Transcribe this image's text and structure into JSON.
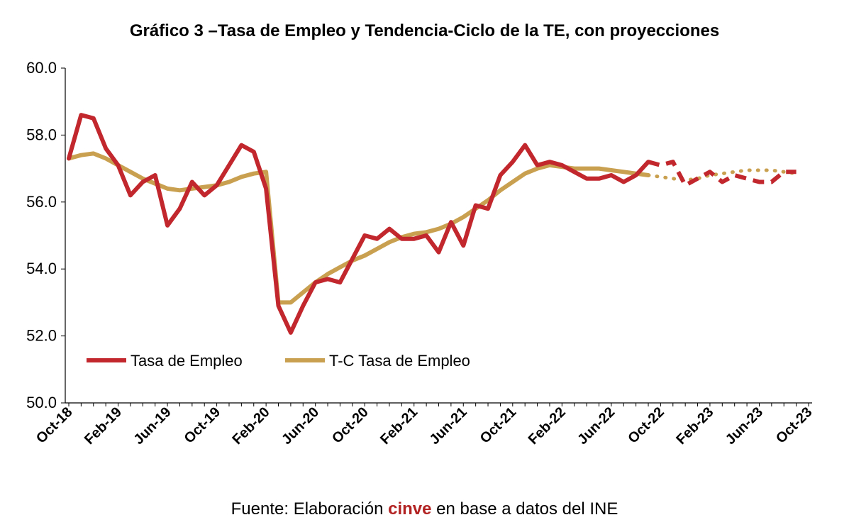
{
  "chart_data": {
    "type": "line",
    "title": "Gráfico 3 –Tasa de Empleo y Tendencia-Ciclo de la TE, con proyecciones",
    "xlabel": "",
    "ylabel": "",
    "ylim": [
      50,
      60
    ],
    "y_ticks": [
      "50.0",
      "52.0",
      "54.0",
      "56.0",
      "58.0",
      "60.0"
    ],
    "x_tick_labels": [
      "Oct-18",
      "Feb-19",
      "Jun-19",
      "Oct-19",
      "Feb-20",
      "Jun-20",
      "Oct-20",
      "Feb-21",
      "Jun-21",
      "Oct-21",
      "Feb-22",
      "Jun-22",
      "Oct-22",
      "Feb-23",
      "Jun-23",
      "Oct-23"
    ],
    "x_start": "Oct-18",
    "x_end": "Oct-23",
    "grid": false,
    "legend_placement": "bottom-left",
    "series": [
      {
        "name": "Tasa de Empleo",
        "color": "#c1272d",
        "style": "solid",
        "values": [
          57.3,
          58.6,
          58.5,
          57.6,
          57.1,
          56.2,
          56.6,
          56.8,
          55.3,
          55.8,
          56.6,
          56.2,
          56.5,
          57.1,
          57.7,
          57.5,
          56.4,
          52.9,
          52.1,
          52.9,
          53.6,
          53.7,
          53.6,
          54.3,
          55.0,
          54.9,
          55.2,
          54.9,
          54.9,
          55.0,
          54.5,
          55.4,
          54.7,
          55.9,
          55.8,
          56.8,
          57.2,
          57.7,
          57.1,
          57.2,
          57.1,
          56.9,
          56.7,
          56.7,
          56.8,
          56.6,
          56.8,
          57.2
        ]
      },
      {
        "name": "",
        "color": "#c1272d",
        "style": "dashed",
        "offset": 47,
        "values": [
          57.2,
          57.1,
          57.2,
          56.5,
          56.7,
          56.9,
          56.6,
          56.8,
          56.7,
          56.6,
          56.6,
          56.9,
          56.9
        ]
      },
      {
        "name": "T-C Tasa de Empleo",
        "color": "#c9a04f",
        "style": "solid",
        "values": [
          57.3,
          57.4,
          57.45,
          57.3,
          57.1,
          56.9,
          56.7,
          56.55,
          56.4,
          56.35,
          56.4,
          56.45,
          56.5,
          56.6,
          56.75,
          56.85,
          56.9,
          53.0,
          53.0,
          53.3,
          53.6,
          53.85,
          54.05,
          54.25,
          54.4,
          54.6,
          54.8,
          54.95,
          55.05,
          55.1,
          55.2,
          55.35,
          55.55,
          55.8,
          56.05,
          56.35,
          56.6,
          56.85,
          57.0,
          57.1,
          57.05,
          57.0,
          57.0,
          57.0,
          56.95,
          56.9,
          56.85,
          56.8
        ]
      },
      {
        "name": "",
        "color": "#c9a04f",
        "style": "dotted",
        "offset": 47,
        "values": [
          56.8,
          56.75,
          56.7,
          56.65,
          56.7,
          56.8,
          56.85,
          56.9,
          56.95,
          56.95,
          56.95,
          56.9,
          56.85
        ]
      }
    ]
  },
  "source": {
    "prefix": "Fuente: Elaboración ",
    "brand": "cinve",
    "suffix": " en base a datos del INE"
  }
}
